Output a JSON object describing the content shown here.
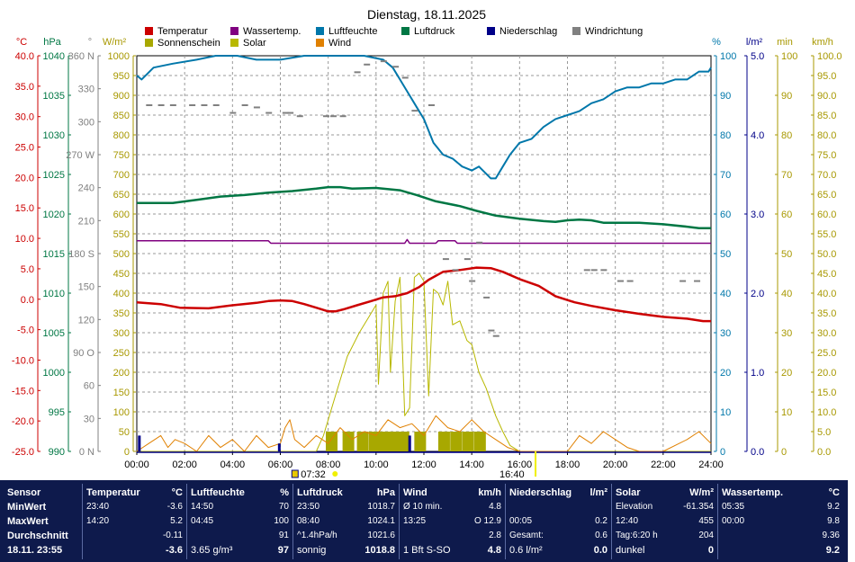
{
  "title": "Dienstag, 18.11.2025",
  "legend": [
    {
      "label": "Temperatur",
      "color": "#cc0000"
    },
    {
      "label": "Wassertemp.",
      "color": "#800080"
    },
    {
      "label": "Luftfeuchte",
      "color": "#0077aa"
    },
    {
      "label": "Luftdruck",
      "color": "#007744"
    },
    {
      "label": "Niederschlag",
      "color": "#000088"
    },
    {
      "label": "Windrichtung",
      "color": "#808080"
    },
    {
      "label": "Sonnenschein",
      "color": "#a8a800"
    },
    {
      "label": "Solar",
      "color": "#b8b800"
    },
    {
      "label": "Wind",
      "color": "#e08000"
    }
  ],
  "axes": {
    "temp": {
      "unit": "°C",
      "color": "#cc0000",
      "ticks": [
        "40.0",
        "35.0",
        "30.0",
        "25.0",
        "20.0",
        "15.0",
        "10.0",
        "5.0",
        "0.0",
        "-5.0",
        "-10.0",
        "-15.0",
        "-20.0",
        "-25.0"
      ]
    },
    "pressure": {
      "unit": "hPa",
      "color": "#007744",
      "ticks": [
        "1040",
        "1035",
        "1030",
        "1025",
        "1020",
        "1015",
        "1010",
        "1005",
        "1000",
        "995",
        "990"
      ]
    },
    "direction": {
      "unit": "°",
      "color": "#808080",
      "ticks": [
        "360 N",
        "330",
        "300",
        "270 W",
        "240",
        "210",
        "180 S",
        "150",
        "120",
        "90 O",
        "60",
        "30",
        "0 N"
      ]
    },
    "solar": {
      "unit": "W/m²",
      "color": "#a89800",
      "ticks": [
        "1000",
        "950",
        "900",
        "850",
        "800",
        "750",
        "700",
        "650",
        "600",
        "550",
        "500",
        "450",
        "400",
        "350",
        "300",
        "250",
        "200",
        "150",
        "100",
        "50",
        "0"
      ]
    },
    "humidity": {
      "unit": "%",
      "color": "#0077aa",
      "ticks": [
        "100",
        "90",
        "80",
        "70",
        "60",
        "50",
        "40",
        "30",
        "20",
        "10",
        "0"
      ]
    },
    "rain": {
      "unit": "l/m²",
      "color": "#000088",
      "ticks": [
        "5.0",
        "4.0",
        "3.0",
        "2.0",
        "1.0",
        "0.0"
      ]
    },
    "sunmin": {
      "unit": "min",
      "color": "#a89800",
      "ticks": [
        "100",
        "90",
        "80",
        "70",
        "60",
        "50",
        "40",
        "30",
        "20",
        "10",
        "0"
      ]
    },
    "windspeed": {
      "unit": "km/h",
      "color": "#a89800",
      "ticks": [
        "100.0",
        "95.0",
        "90.0",
        "85.0",
        "80.0",
        "75.0",
        "70.0",
        "65.0",
        "60.0",
        "55.0",
        "50.0",
        "45.0",
        "40.0",
        "35.0",
        "30.0",
        "25.0",
        "20.0",
        "15.0",
        "10.0",
        "5.0",
        "0.0"
      ]
    }
  },
  "time_ticks": [
    "00:00",
    "02:00",
    "04:00",
    "06:00",
    "08:00",
    "10:00",
    "12:00",
    "14:00",
    "16:00",
    "18:00",
    "20:00",
    "22:00",
    "24:00"
  ],
  "sunrise": "07:32",
  "sunset": "16:40",
  "chart_data": {
    "type": "line",
    "title": "Dienstag, 18.11.2025",
    "x_unit": "hour",
    "xlim": [
      0,
      24
    ],
    "series": [
      {
        "name": "Temperatur",
        "axis": "temp",
        "color": "#cc0000",
        "x": [
          0,
          1,
          1.8,
          3,
          4,
          5,
          5.5,
          6,
          6.5,
          7,
          7.5,
          8,
          8.3,
          8.7,
          9.2,
          9.8,
          10.3,
          10.8,
          11.3,
          11.8,
          12.2,
          12.8,
          13.5,
          14.2,
          14.8,
          15.3,
          16,
          16.8,
          17.5,
          18.3,
          19,
          20,
          21,
          22,
          23,
          23.67,
          24
        ],
        "y": [
          -0.5,
          -0.8,
          -1.4,
          -1.5,
          -1.0,
          -0.6,
          -0.3,
          -0.2,
          -0.3,
          -0.8,
          -1.4,
          -2.0,
          -2.0,
          -1.6,
          -1.0,
          -0.3,
          0.3,
          0.5,
          1.0,
          2.0,
          3.2,
          4.5,
          4.8,
          5.2,
          5.1,
          4.5,
          3.3,
          2.2,
          0.5,
          -0.5,
          -1.1,
          -1.8,
          -2.4,
          -2.9,
          -3.2,
          -3.6,
          -3.6
        ]
      },
      {
        "name": "Wassertemp.",
        "axis": "temp",
        "color": "#800080",
        "x": [
          0,
          5.5,
          5.6,
          11.2,
          11.3,
          11.4,
          12.5,
          12.6,
          13.3,
          13.4,
          24
        ],
        "y": [
          9.6,
          9.6,
          9.2,
          9.2,
          9.8,
          9.2,
          9.2,
          9.6,
          9.6,
          9.2,
          9.2
        ]
      },
      {
        "name": "Luftfeuchte",
        "axis": "humidity",
        "color": "#0077aa",
        "x": [
          0,
          0.2,
          0.7,
          1.5,
          2.5,
          3.3,
          4.2,
          5,
          6,
          7,
          8,
          9,
          9.5,
          10.3,
          10.7,
          11,
          11.3,
          11.7,
          12,
          12.4,
          12.8,
          13.2,
          13.6,
          14,
          14.3,
          14.8,
          15,
          15.3,
          15.6,
          16,
          16.5,
          17,
          17.5,
          18,
          18.5,
          19,
          19.5,
          20,
          20.5,
          21,
          21.5,
          22,
          22.5,
          23,
          23.5,
          23.9,
          24
        ],
        "y": [
          95,
          94,
          97,
          98,
          99,
          100,
          100,
          99,
          99,
          100,
          100,
          100,
          100,
          99,
          97,
          94,
          91,
          87,
          84,
          78,
          75,
          74,
          72,
          71,
          72,
          69,
          69,
          72,
          75,
          78,
          79,
          82,
          84,
          85,
          86,
          88,
          89,
          91,
          92,
          92,
          93,
          93,
          94,
          94,
          96,
          96,
          97
        ]
      },
      {
        "name": "Luftdruck",
        "axis": "pressure",
        "color": "#007744",
        "x": [
          0,
          0.7,
          1.5,
          2.5,
          3.5,
          4.5,
          5.5,
          6.5,
          7.5,
          8,
          8.5,
          9,
          10,
          11,
          11.7,
          12.5,
          13.5,
          14.2,
          15,
          16,
          17,
          17.5,
          18,
          18.5,
          19,
          19.5,
          20,
          21,
          22,
          23,
          23.5,
          24
        ],
        "y": [
          1021.4,
          1021.4,
          1021.4,
          1021.8,
          1022.2,
          1022.4,
          1022.7,
          1022.9,
          1023.2,
          1023.4,
          1023.4,
          1023.2,
          1023.3,
          1023.0,
          1022.4,
          1021.6,
          1021.0,
          1020.4,
          1019.8,
          1019.4,
          1019.1,
          1019.0,
          1019.2,
          1019.3,
          1019.2,
          1018.9,
          1018.9,
          1018.9,
          1018.7,
          1018.4,
          1018.2,
          1018.2
        ]
      },
      {
        "name": "Solar",
        "axis": "solar",
        "color": "#b8b800",
        "x": [
          0,
          7.5,
          7.8,
          8.3,
          8.8,
          9.3,
          9.7,
          10,
          10.1,
          10.3,
          10.5,
          10.6,
          10.8,
          11,
          11.2,
          11.4,
          11.6,
          11.8,
          12,
          12.2,
          12.4,
          12.6,
          12.8,
          13,
          13.2,
          13.5,
          13.8,
          14,
          14.3,
          14.6,
          15,
          15.3,
          15.6,
          16,
          24
        ],
        "y": [
          0,
          0,
          40,
          140,
          240,
          300,
          340,
          370,
          170,
          400,
          430,
          200,
          380,
          440,
          90,
          110,
          440,
          450,
          430,
          140,
          410,
          400,
          370,
          430,
          320,
          330,
          280,
          270,
          200,
          160,
          90,
          50,
          15,
          0,
          0
        ]
      },
      {
        "name": "Wind",
        "axis": "windspeed",
        "color": "#e08000",
        "x": [
          0,
          0.5,
          1,
          1.3,
          1.6,
          2,
          2.5,
          3,
          3.5,
          4,
          4.5,
          5,
          5.5,
          6,
          6.2,
          6.4,
          6.6,
          7,
          7.5,
          8,
          8.5,
          9,
          9.5,
          10,
          10.5,
          11,
          11.5,
          12,
          12.5,
          13,
          13.5,
          14,
          14.5,
          15,
          15.5,
          16,
          17,
          18,
          18.5,
          19,
          19.5,
          20,
          20.5,
          21,
          22,
          23,
          23.5,
          24
        ],
        "y": [
          0,
          2,
          4,
          1,
          3,
          2,
          0,
          4,
          1,
          3,
          0,
          4,
          1,
          2,
          6,
          8,
          3,
          1,
          4,
          2,
          6,
          3,
          5,
          4,
          8,
          6,
          7,
          4,
          9,
          6,
          5,
          8,
          5,
          3,
          1,
          0,
          0,
          0,
          4,
          2,
          5,
          3,
          1,
          0,
          0,
          3,
          5,
          2
        ]
      },
      {
        "name": "Niederschlag",
        "axis": "rain",
        "color": "#000088",
        "type": "bar",
        "x": [
          0.05,
          5.9,
          11.35
        ],
        "y": [
          0.2,
          0.1,
          0.2
        ]
      },
      {
        "name": "Sonnenschein",
        "axis": "sunmin",
        "color": "#a8a800",
        "type": "bar",
        "x": [
          7.9,
          8.6,
          9.2,
          9.7,
          10.1,
          10.5,
          10.9,
          11.6,
          12.1,
          12.6,
          13.1,
          13.6,
          14.1
        ],
        "y": [
          5,
          5,
          5,
          5,
          5,
          5,
          5,
          5,
          0,
          5,
          5,
          5,
          5
        ]
      }
    ],
    "wind_direction": {
      "x": [
        0.5,
        1.0,
        1.5,
        2.3,
        2.8,
        3.3,
        4.0,
        4.5,
        5.0,
        5.5,
        6.2,
        6.4,
        6.8,
        7.9,
        8.2,
        8.6,
        9.2,
        9.6,
        10.3,
        10.8,
        11.2,
        11.6,
        12.3,
        12.9,
        13.3,
        13.8,
        14.0,
        14.3,
        14.6,
        14.8,
        15.0,
        18.8,
        19.1,
        19.5,
        20.2,
        20.6,
        22.8,
        23.4
      ],
      "y": [
        315,
        315,
        315,
        315,
        315,
        315,
        308,
        315,
        313,
        308,
        308,
        308,
        305,
        305,
        305,
        305,
        345,
        352,
        355,
        350,
        340,
        310,
        315,
        175,
        165,
        175,
        155,
        190,
        140,
        110,
        105,
        165,
        165,
        165,
        155,
        155,
        155,
        155
      ]
    }
  },
  "panel": [
    {
      "header": "Sensor",
      "unit": "",
      "rows": [
        {
          "label": "MinWert",
          "time": "",
          "value": ""
        },
        {
          "label": "MaxWert",
          "time": "",
          "value": ""
        },
        {
          "label": "Durchschnitt",
          "time": "",
          "value": ""
        },
        {
          "label": "18.11. 23:55",
          "time": "",
          "value": ""
        }
      ]
    },
    {
      "header": "Temperatur",
      "unit": "°C",
      "rows": [
        {
          "label": "23:40",
          "time": "",
          "value": "-3.6"
        },
        {
          "label": "14:20",
          "time": "",
          "value": "5.2"
        },
        {
          "label": "",
          "time": "",
          "value": "-0.11"
        },
        {
          "label": "",
          "time": "",
          "value": "-3.6"
        }
      ]
    },
    {
      "header": "Luftfeuchte",
      "unit": "%",
      "rows": [
        {
          "label": "14:50",
          "time": "",
          "value": "70"
        },
        {
          "label": "04:45",
          "time": "",
          "value": "100"
        },
        {
          "label": "",
          "time": "",
          "value": "91"
        },
        {
          "label": "3.65 g/m³",
          "time": "",
          "value": "97"
        }
      ]
    },
    {
      "header": "Luftdruck",
      "unit": "hPa",
      "rows": [
        {
          "label": "23:50",
          "time": "",
          "value": "1018.7"
        },
        {
          "label": "08:40",
          "time": "",
          "value": "1024.1"
        },
        {
          "label": "^1.4hPa/h",
          "time": "",
          "value": "1021.6"
        },
        {
          "label": "sonnig",
          "time": "",
          "value": "1018.8"
        }
      ]
    },
    {
      "header": "Wind",
      "unit": "km/h",
      "rows": [
        {
          "label": "Ø 10 min.",
          "time": "",
          "value": "4.8"
        },
        {
          "label": "13:25",
          "time": "",
          "value": "O 12.9"
        },
        {
          "label": "",
          "time": "",
          "value": "2.8"
        },
        {
          "label": "1 Bft S-SO",
          "time": "",
          "value": "4.8"
        }
      ]
    },
    {
      "header": "Niederschlag",
      "unit": "l/m²",
      "rows": [
        {
          "label": "",
          "time": "",
          "value": ""
        },
        {
          "label": "00:05",
          "time": "",
          "value": "0.2"
        },
        {
          "label": "Gesamt:",
          "time": "",
          "value": "0.6"
        },
        {
          "label": "0.6 l/m²",
          "time": "",
          "value": "0.0"
        }
      ]
    },
    {
      "header": "Solar",
      "unit": "W/m²",
      "rows": [
        {
          "label": "Elevation",
          "time": "",
          "value": "-61.354"
        },
        {
          "label": "12:40",
          "time": "",
          "value": "455"
        },
        {
          "label": "Tag:6:20 h",
          "time": "",
          "value": "204"
        },
        {
          "label": "dunkel",
          "time": "",
          "value": "0"
        }
      ]
    },
    {
      "header": "Wassertemp.",
      "unit": "°C",
      "rows": [
        {
          "label": "05:35",
          "time": "",
          "value": "9.2"
        },
        {
          "label": "00:00",
          "time": "",
          "value": "9.8"
        },
        {
          "label": "",
          "time": "",
          "value": "9.36"
        },
        {
          "label": "",
          "time": "",
          "value": "9.2"
        }
      ]
    }
  ]
}
